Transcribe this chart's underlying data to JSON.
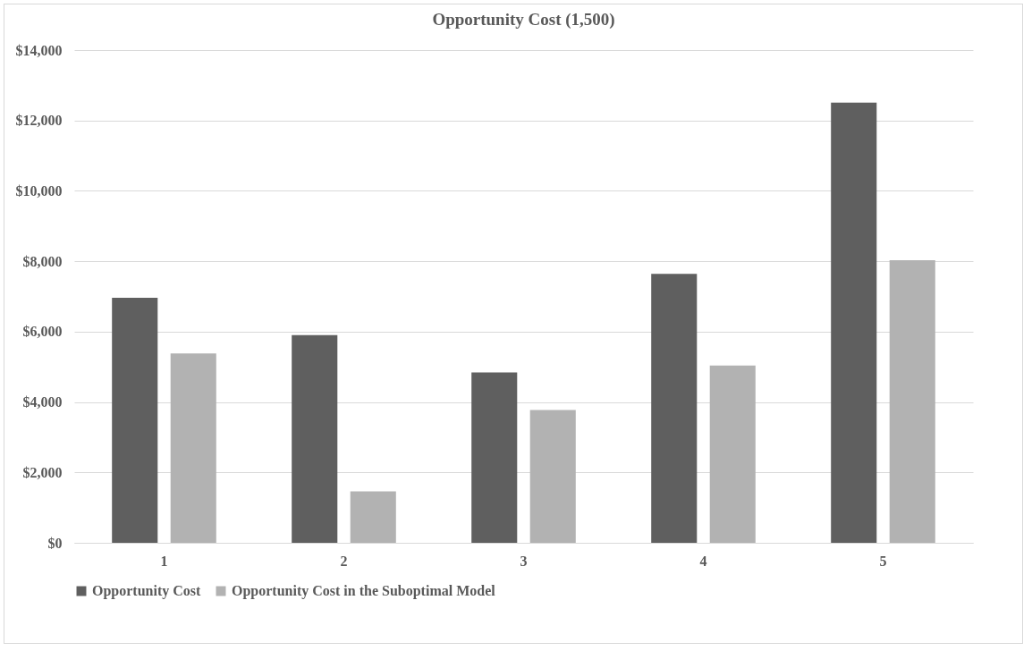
{
  "chart_data": {
    "type": "bar",
    "title": "Opportunity Cost (1,500)",
    "categories": [
      "1",
      "2",
      "3",
      "4",
      "5"
    ],
    "series": [
      {
        "name": "Opportunity Cost",
        "color": "#5f5f5f",
        "values": [
          6960,
          5900,
          4840,
          7640,
          12510
        ]
      },
      {
        "name": "Opportunity Cost in the Suboptimal Model",
        "color": "#b2b2b2",
        "values": [
          5380,
          1460,
          3770,
          5040,
          8030
        ]
      }
    ],
    "ylim": [
      0,
      14000
    ],
    "yticks": [
      {
        "value": 0,
        "label": "$0"
      },
      {
        "value": 2000,
        "label": "$2,000"
      },
      {
        "value": 4000,
        "label": "$4,000"
      },
      {
        "value": 6000,
        "label": "$6,000"
      },
      {
        "value": 8000,
        "label": "$8,000"
      },
      {
        "value": 10000,
        "label": "$10,000"
      },
      {
        "value": 12000,
        "label": "$12,000"
      },
      {
        "value": 14000,
        "label": "$14,000"
      }
    ],
    "grid": "y",
    "legend": "bottom"
  }
}
